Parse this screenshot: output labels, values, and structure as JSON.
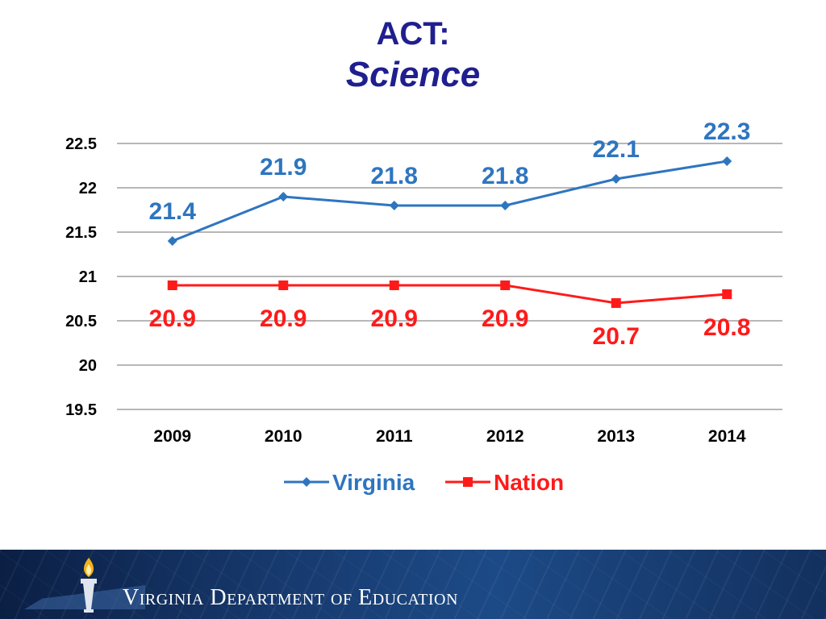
{
  "slide": {
    "title": "ACT:",
    "subtitle": "Science"
  },
  "chart_data": {
    "type": "line",
    "categories": [
      "2009",
      "2010",
      "2011",
      "2012",
      "2013",
      "2014"
    ],
    "series": [
      {
        "name": "Virginia",
        "values": [
          21.4,
          21.9,
          21.8,
          21.8,
          22.1,
          22.3
        ],
        "color": "#2e75c0",
        "marker": "diamond"
      },
      {
        "name": "Nation",
        "values": [
          20.9,
          20.9,
          20.9,
          20.9,
          20.7,
          20.8
        ],
        "color": "#ff1a1a",
        "marker": "square"
      }
    ],
    "data_labels": {
      "Virginia": [
        "21.4",
        "21.9",
        "21.8",
        "21.8",
        "22.1",
        "22.3"
      ],
      "Nation": [
        "20.9",
        "20.9",
        "20.9",
        "20.9",
        "20.7",
        "20.8"
      ]
    },
    "y_ticks": [
      "22.5",
      "22",
      "21.5",
      "21",
      "20.5",
      "20",
      "19.5"
    ],
    "ylim": [
      19.5,
      22.5
    ],
    "grid": true,
    "legend_position": "bottom"
  },
  "footer": {
    "organization": "Virginia Department of Education"
  },
  "colors": {
    "title": "#1f1f8f",
    "gridline": "#8c8c8c",
    "axis_text": "#000000"
  }
}
